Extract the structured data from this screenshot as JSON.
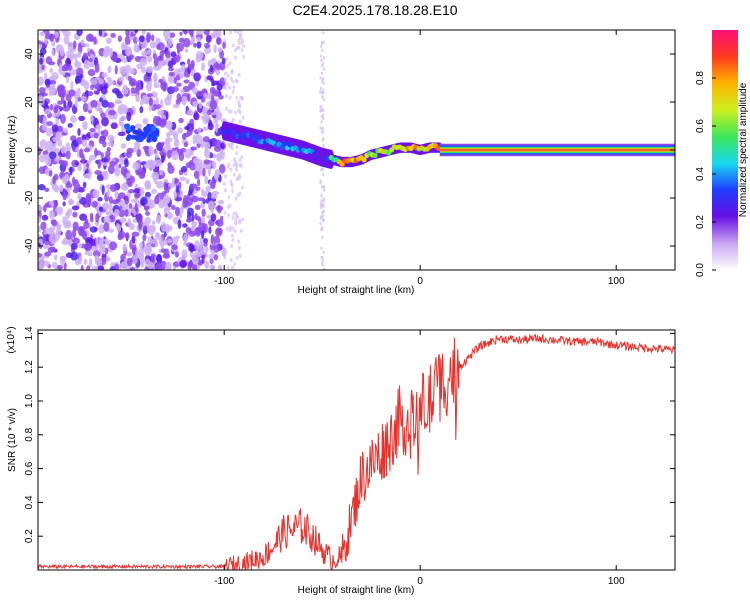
{
  "title": "C2E4.2025.178.18.28.E10",
  "chart_data": [
    {
      "type": "heatmap",
      "xlabel": "Height of straight line (km)",
      "ylabel": "Frequency (Hz)",
      "xlim": [
        -195,
        130
      ],
      "ylim": [
        -50,
        50
      ],
      "x_ticks": [
        -100,
        0,
        100
      ],
      "y_ticks": [
        -40,
        -20,
        0,
        20,
        40
      ],
      "colorbar": {
        "label": "Normalized spectral amplitude",
        "range": [
          0.0,
          1.0
        ],
        "ticks": [
          "0.0",
          "0.2",
          "0.4",
          "0.6",
          "0.8"
        ],
        "colors": [
          "#ffffff",
          "#c8a6f2",
          "#6a0fe6",
          "#1f3cff",
          "#18d8f0",
          "#3ee65a",
          "#ccf01f",
          "#ffb400",
          "#ff3a1e",
          "#ff0f78"
        ]
      },
      "ridge": {
        "x": [
          -100,
          -90,
          -80,
          -70,
          -60,
          -50,
          -45,
          -40,
          -35,
          -30,
          -25,
          -20,
          -15,
          -10,
          -5,
          0,
          5,
          10,
          20,
          60,
          100,
          130
        ],
        "y": [
          8,
          6,
          4,
          2,
          0,
          -3,
          -4,
          -5,
          -5,
          -4,
          -2,
          -1,
          0,
          1,
          1,
          0,
          1,
          1,
          0,
          0,
          0,
          0
        ],
        "amplitude": [
          0.35,
          0.35,
          0.4,
          0.4,
          0.45,
          0.25,
          0.55,
          0.85,
          0.85,
          0.85,
          0.7,
          0.75,
          0.75,
          0.8,
          0.8,
          0.8,
          0.8,
          0.85,
          0.95,
          0.95,
          0.95,
          0.95
        ]
      },
      "noise_region_x": [
        -195,
        -100
      ]
    },
    {
      "type": "line",
      "xlabel": "Height of straight line (km)",
      "ylabel": "SNR (10 * v/v)",
      "y_multiplier": "(x10⁴)",
      "xlim": [
        -195,
        130
      ],
      "ylim": [
        0,
        1.42
      ],
      "x_ticks": [
        -100,
        0,
        100
      ],
      "y_ticks": [
        0.2,
        0.4,
        0.6,
        0.8,
        1.0,
        1.2,
        1.4
      ],
      "color": "#e8312c",
      "series": [
        {
          "x": [
            -195,
            -150,
            -100,
            -90,
            -80,
            -75,
            -70,
            -65,
            -60,
            -55,
            -50,
            -45,
            -40,
            -35,
            -30,
            -25,
            -20,
            -15,
            -10,
            -5,
            0,
            5,
            10,
            15,
            20,
            30,
            40,
            50,
            60,
            70,
            80,
            90,
            100,
            110,
            120,
            130
          ],
          "y": [
            0.02,
            0.02,
            0.02,
            0.04,
            0.08,
            0.14,
            0.22,
            0.24,
            0.26,
            0.2,
            0.12,
            0.06,
            0.08,
            0.3,
            0.55,
            0.62,
            0.7,
            0.78,
            0.9,
            0.85,
            0.95,
            1.0,
            1.1,
            1.15,
            1.2,
            1.32,
            1.37,
            1.36,
            1.37,
            1.36,
            1.35,
            1.35,
            1.33,
            1.32,
            1.31,
            1.3
          ]
        }
      ]
    }
  ]
}
